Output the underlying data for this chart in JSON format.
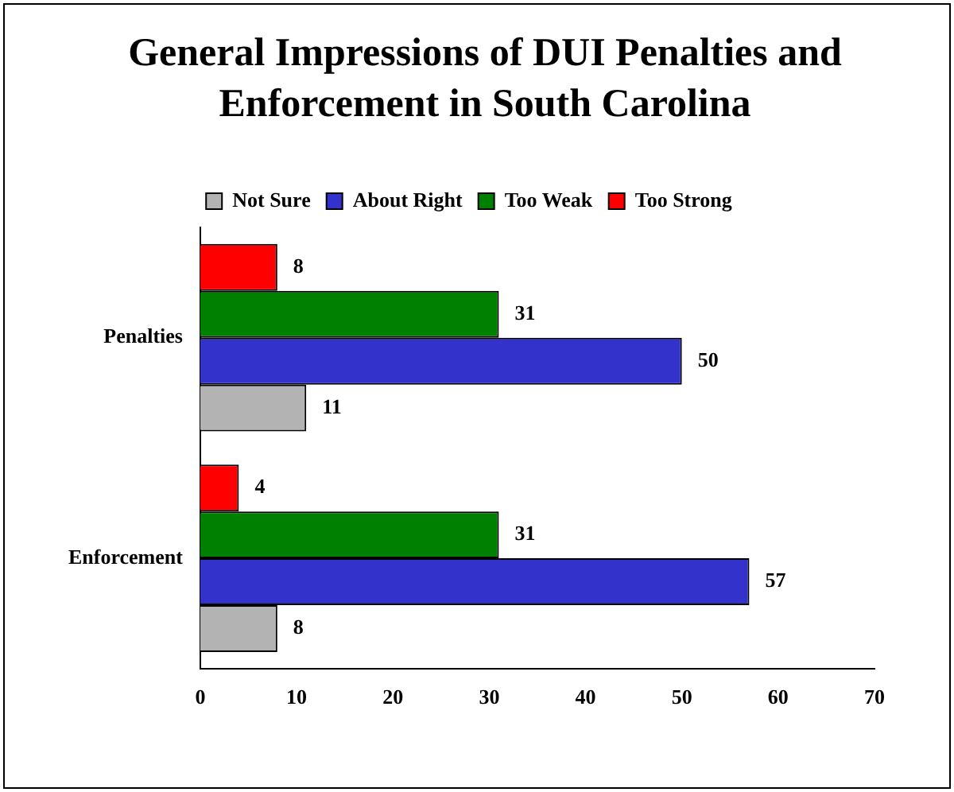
{
  "chart_data": {
    "type": "bar",
    "orientation": "horizontal",
    "title": "General Impressions of DUI Penalties and Enforcement in South Carolina",
    "categories": [
      "Penalties",
      "Enforcement"
    ],
    "series": [
      {
        "name": "Not Sure",
        "color": "#b3b3b3",
        "values": [
          11,
          8
        ]
      },
      {
        "name": "About Right",
        "color": "#3333cc",
        "values": [
          50,
          57
        ]
      },
      {
        "name": "Too Weak",
        "color": "#008000",
        "values": [
          31,
          31
        ]
      },
      {
        "name": "Too Strong",
        "color": "#ff0000",
        "values": [
          8,
          4
        ]
      }
    ],
    "xlim": [
      0,
      70
    ],
    "xticks": [
      0,
      10,
      20,
      30,
      40,
      50,
      60,
      70
    ],
    "grid": false,
    "legend": "top",
    "data_labels": true
  }
}
